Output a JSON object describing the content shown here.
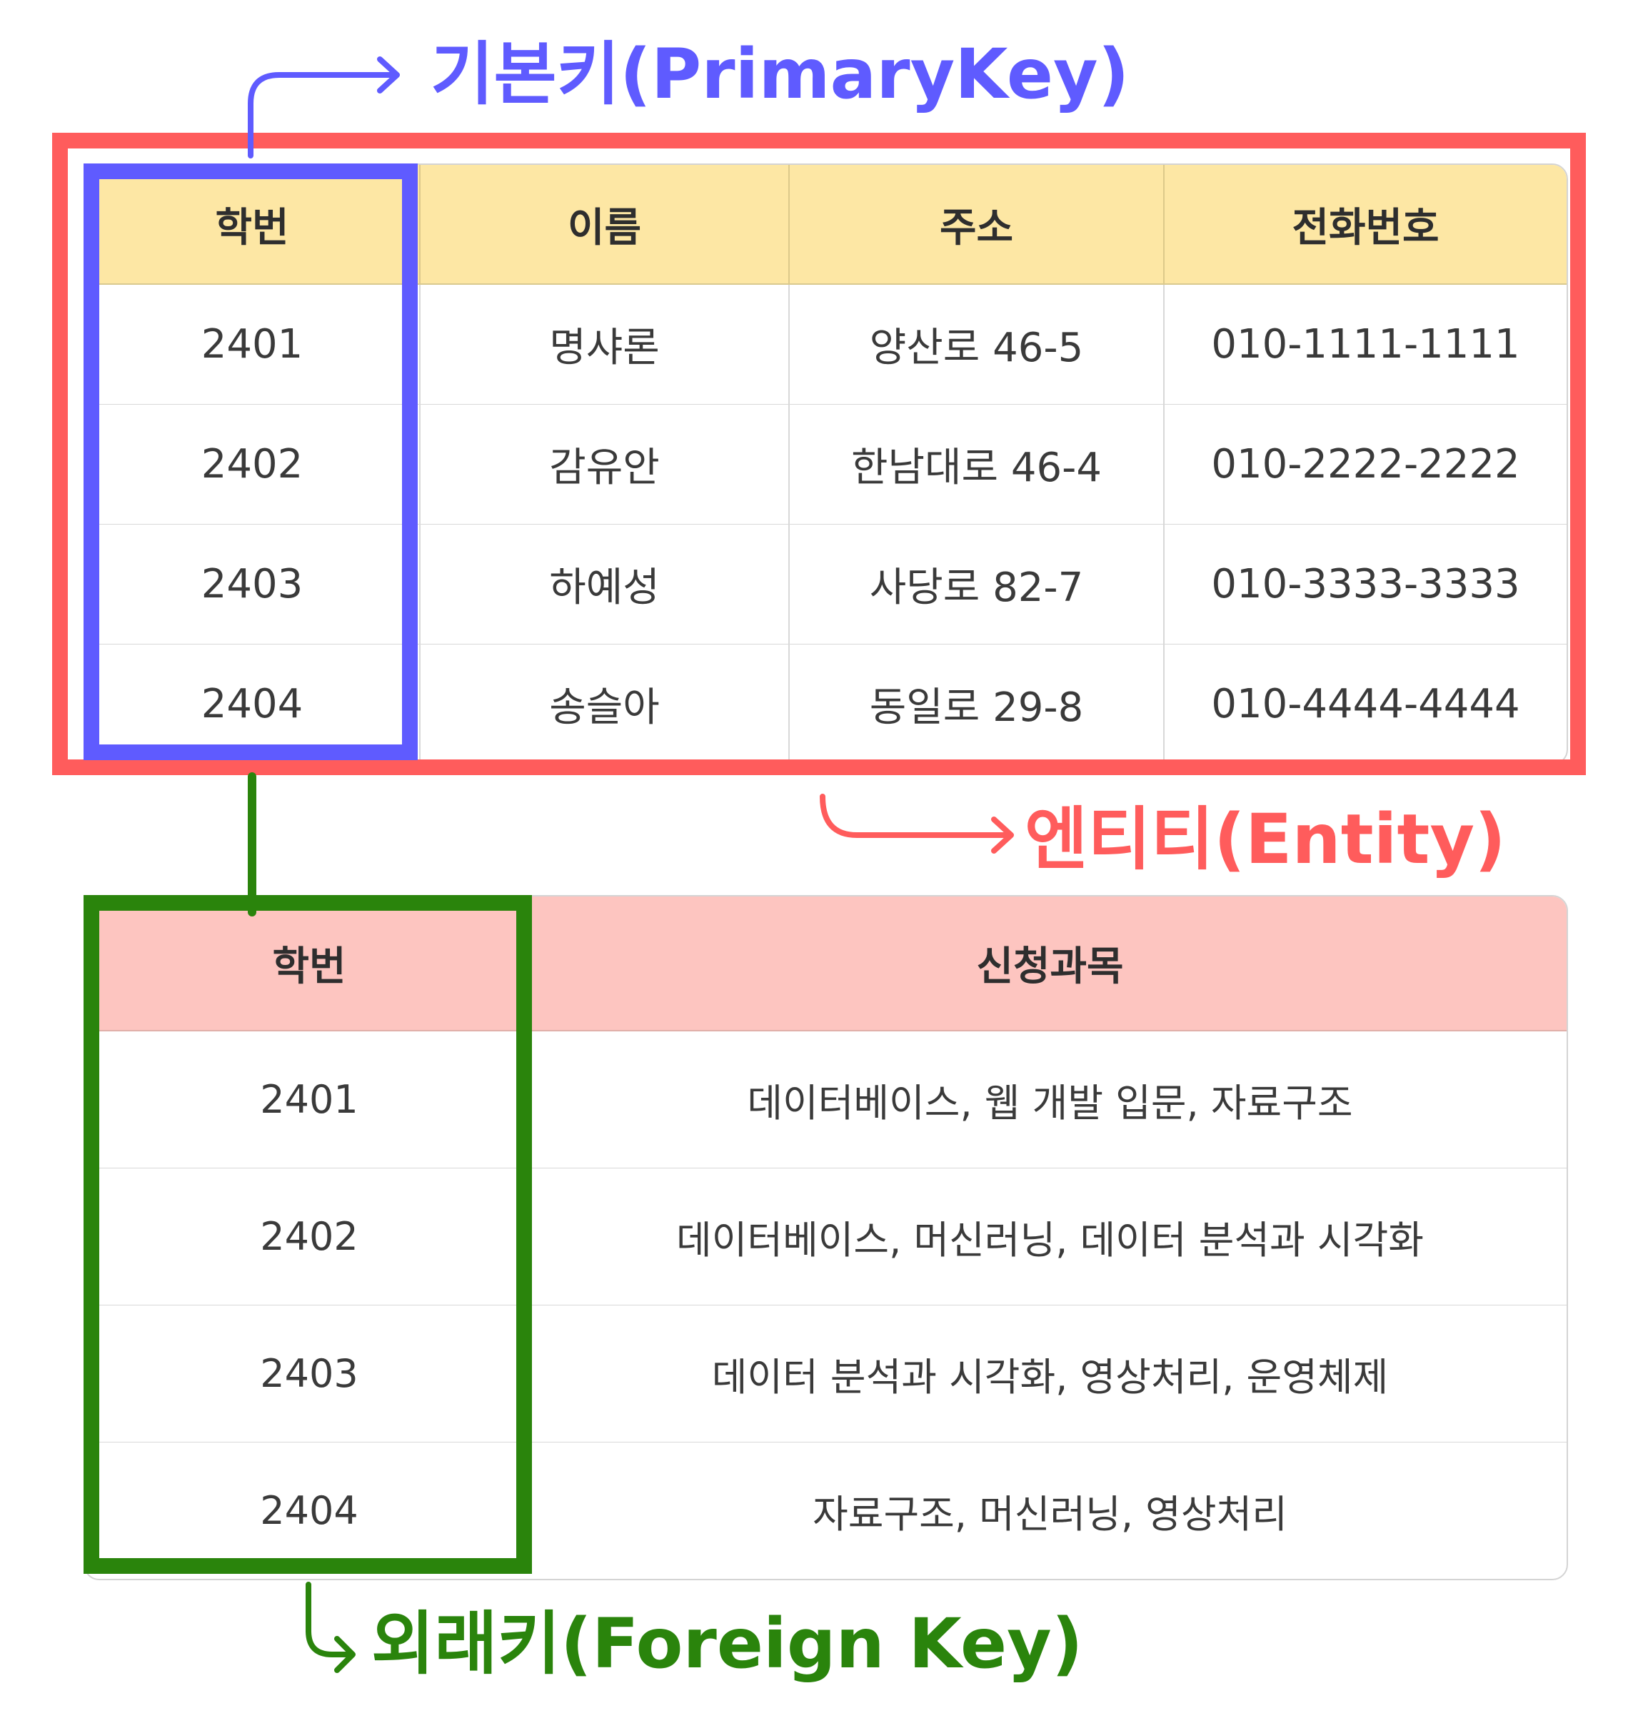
{
  "entity_table": {
    "headers": [
      "학번",
      "이름",
      "주소",
      "전화번호"
    ],
    "rows": [
      [
        "2401",
        "명샤론",
        "양산로 46-5",
        "010-1111-1111"
      ],
      [
        "2402",
        "감유안",
        "한남대로 46-4",
        "010-2222-2222"
      ],
      [
        "2403",
        "하예성",
        "사당로 82-7",
        "010-3333-3333"
      ],
      [
        "2404",
        "송슬아",
        "동일로 29-8",
        "010-4444-4444"
      ]
    ]
  },
  "course_table": {
    "headers": [
      "학번",
      "신청과목"
    ],
    "rows": [
      [
        "2401",
        "데이터베이스, 웹 개발 입문, 자료구조"
      ],
      [
        "2402",
        "데이터베이스, 머신러닝, 데이터 분석과 시각화"
      ],
      [
        "2403",
        "데이터 분석과 시각화, 영상처리, 운영체제"
      ],
      [
        "2404",
        "자료구조, 머신러닝, 영상처리"
      ]
    ]
  },
  "labels": {
    "primary_key": "기본키(PrimaryKey)",
    "entity": "엔티티(Entity)",
    "foreign_key": "외래키(Foreign Key)"
  },
  "colors": {
    "primary_key": "#5f5bff",
    "entity": "#ff5c5c",
    "foreign_key": "#2a840c",
    "entity_header_bg": "#fde7a4",
    "course_header_bg": "#fdc5c0"
  }
}
